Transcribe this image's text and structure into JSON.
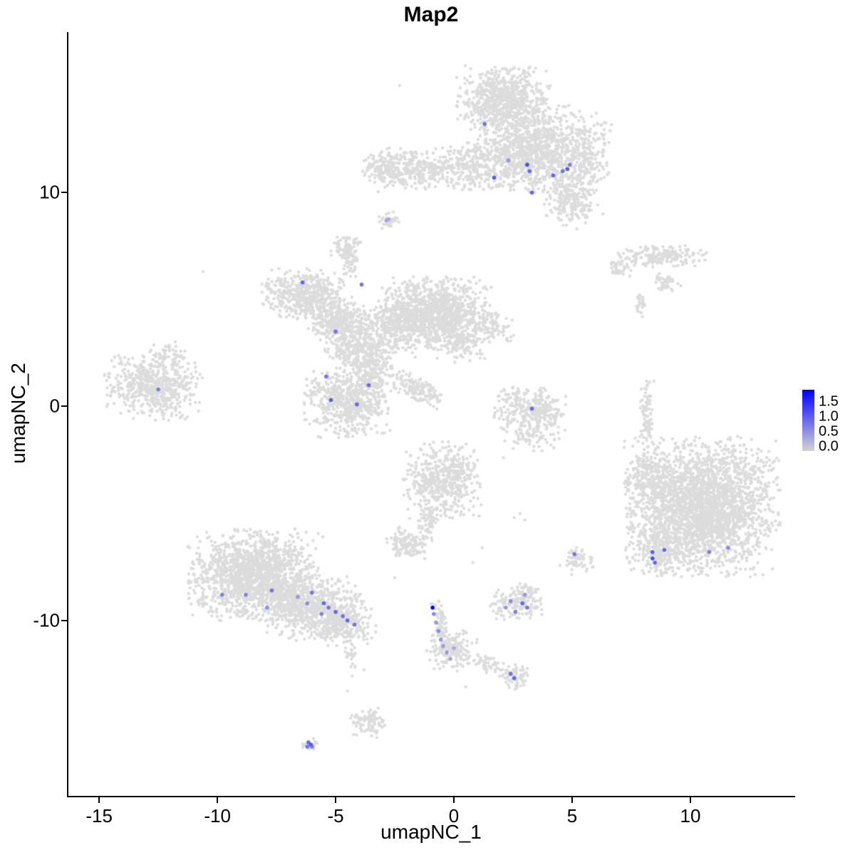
{
  "chart_data": {
    "type": "scatter",
    "title": "Map2",
    "xlabel": "umapNC_1",
    "ylabel": "umapNC_2",
    "xlim": [
      -16.3,
      14.4
    ],
    "ylim": [
      -18.2,
      17.5
    ],
    "xticks": [
      -15,
      -10,
      -5,
      0,
      5,
      10
    ],
    "yticks": [
      -10,
      0,
      10
    ],
    "grid": false,
    "point_color_base": "#DCDCDC",
    "colorbar": {
      "ticks": [
        "1.5",
        "1.0",
        "0.5",
        "0.0"
      ],
      "tick_values": [
        1.5,
        1.0,
        0.5,
        0.0
      ],
      "vmax": 1.75,
      "color_low": "#D3D3D3",
      "color_high": "#0000FF",
      "position": "right"
    },
    "clusters": [
      {
        "cx": 2.1,
        "cy": 14.3,
        "sx": 0.9,
        "sy": 0.75,
        "n": 700
      },
      {
        "cx": 3.4,
        "cy": 12.0,
        "sx": 1.05,
        "sy": 0.95,
        "n": 900
      },
      {
        "cx": 1.0,
        "cy": 11.3,
        "sx": 0.9,
        "sy": 0.55,
        "n": 320
      },
      {
        "cx": -1.6,
        "cy": 11.0,
        "sx": 0.8,
        "sy": 0.45,
        "n": 240
      },
      {
        "cx": -2.9,
        "cy": 11.2,
        "sx": 0.45,
        "sy": 0.45,
        "n": 140
      },
      {
        "cx": 4.9,
        "cy": 9.7,
        "sx": 0.55,
        "sy": 0.6,
        "n": 220
      },
      {
        "cx": 5.6,
        "cy": 11.9,
        "sx": 0.5,
        "sy": 0.85,
        "n": 210
      },
      {
        "cx": -2.8,
        "cy": 8.7,
        "sx": 0.22,
        "sy": 0.2,
        "n": 40
      },
      {
        "cx": -4.6,
        "cy": 7.4,
        "sx": 0.32,
        "sy": 0.35,
        "n": 70
      },
      {
        "cx": -4.4,
        "cy": 6.5,
        "sx": 0.14,
        "sy": 0.5,
        "n": 40
      },
      {
        "cx": -6.4,
        "cy": 5.3,
        "sx": 0.8,
        "sy": 0.55,
        "n": 450
      },
      {
        "cx": -5.0,
        "cy": 4.2,
        "sx": 0.6,
        "sy": 0.5,
        "n": 250
      },
      {
        "cx": -4.4,
        "cy": 3.1,
        "sx": 0.65,
        "sy": 0.6,
        "n": 300
      },
      {
        "cx": -0.8,
        "cy": 4.4,
        "sx": 1.1,
        "sy": 0.8,
        "n": 1100
      },
      {
        "cx": -2.6,
        "cy": 3.6,
        "sx": 0.7,
        "sy": 0.6,
        "n": 300
      },
      {
        "cx": -4.5,
        "cy": 0.3,
        "sx": 0.85,
        "sy": 0.8,
        "n": 600
      },
      {
        "cx": -3.6,
        "cy": 1.8,
        "sx": 0.5,
        "sy": 0.6,
        "n": 220
      },
      {
        "cx": -1.6,
        "cy": 0.9,
        "sx": 0.6,
        "sy": 0.3,
        "rot": -35,
        "n": 150
      },
      {
        "cx": 1.5,
        "cy": 3.8,
        "sx": 0.55,
        "sy": 0.3,
        "rot": -25,
        "n": 110
      },
      {
        "cx": 0.3,
        "cy": 2.9,
        "sx": 0.5,
        "sy": 0.4,
        "n": 120
      },
      {
        "cx": -12.7,
        "cy": 1.0,
        "sx": 0.95,
        "sy": 0.75,
        "n": 560
      },
      {
        "cx": -12.0,
        "cy": 2.4,
        "sx": 0.4,
        "sy": 0.3,
        "n": 60
      },
      {
        "cx": 8.6,
        "cy": 7.0,
        "sx": 0.95,
        "sy": 0.25,
        "n": 190
      },
      {
        "cx": 7.0,
        "cy": 6.4,
        "sx": 0.3,
        "sy": 0.18,
        "n": 35
      },
      {
        "cx": 9.0,
        "cy": 5.8,
        "sx": 0.3,
        "sy": 0.2,
        "n": 40
      },
      {
        "cx": 7.9,
        "cy": 4.7,
        "sx": 0.12,
        "sy": 0.3,
        "n": 25
      },
      {
        "cx": 3.2,
        "cy": -0.3,
        "sx": 0.7,
        "sy": 0.6,
        "n": 310
      },
      {
        "cx": 3.3,
        "cy": -1.6,
        "sx": 0.5,
        "sy": 0.3,
        "n": 40
      },
      {
        "cx": 8.15,
        "cy": -0.4,
        "sx": 0.15,
        "sy": 0.75,
        "n": 85
      },
      {
        "cx": 10.5,
        "cy": -4.7,
        "sx": 1.5,
        "sy": 1.5,
        "n": 2700
      },
      {
        "cx": 8.3,
        "cy": -3.4,
        "sx": 0.5,
        "sy": 0.55,
        "n": 160
      },
      {
        "cx": 8.6,
        "cy": -6.8,
        "sx": 0.5,
        "sy": 0.5,
        "n": 150
      },
      {
        "cx": -0.5,
        "cy": -3.5,
        "sx": 0.75,
        "sy": 0.85,
        "n": 520
      },
      {
        "cx": -1.1,
        "cy": -5.3,
        "sx": 0.2,
        "sy": 0.5,
        "n": 60
      },
      {
        "cx": -2.0,
        "cy": -6.4,
        "sx": 0.45,
        "sy": 0.35,
        "n": 130
      },
      {
        "cx": 2.7,
        "cy": -9.3,
        "sx": 0.55,
        "sy": 0.4,
        "n": 140
      },
      {
        "cx": 3.0,
        "cy": -8.6,
        "sx": 0.25,
        "sy": 0.2,
        "n": 30
      },
      {
        "cx": 5.2,
        "cy": -7.2,
        "sx": 0.35,
        "sy": 0.3,
        "n": 60
      },
      {
        "cx": -8.4,
        "cy": -7.9,
        "sx": 1.3,
        "sy": 1.0,
        "n": 1550
      },
      {
        "cx": -6.0,
        "cy": -9.4,
        "sx": 1.0,
        "sy": 0.7,
        "n": 620
      },
      {
        "cx": -4.6,
        "cy": -10.2,
        "sx": 0.6,
        "sy": 0.45,
        "n": 260
      },
      {
        "cx": -4.35,
        "cy": -11.6,
        "sx": 0.15,
        "sy": 0.4,
        "n": 25
      },
      {
        "cx": -0.1,
        "cy": -11.4,
        "sx": 0.5,
        "sy": 0.45,
        "n": 160
      },
      {
        "cx": -0.55,
        "cy": -10.2,
        "sx": 0.12,
        "sy": 0.55,
        "rot": 10,
        "n": 60
      },
      {
        "cx": 1.3,
        "cy": -12.0,
        "sx": 0.5,
        "sy": 0.18,
        "rot": -18,
        "n": 50
      },
      {
        "cx": 2.5,
        "cy": -12.6,
        "sx": 0.3,
        "sy": 0.28,
        "n": 70
      },
      {
        "cx": -6.1,
        "cy": -15.8,
        "sx": 0.18,
        "sy": 0.14,
        "n": 25
      },
      {
        "cx": -3.6,
        "cy": -14.8,
        "sx": 0.35,
        "sy": 0.35,
        "n": 85
      }
    ],
    "singles": [
      [
        -10.6,
        6.3
      ],
      [
        2.5,
        0.9
      ],
      [
        2.1,
        -2.4
      ],
      [
        4.1,
        -1.8
      ],
      [
        2.8,
        -5.0
      ],
      [
        3.0,
        -5.3
      ],
      [
        2.55,
        -5.2
      ],
      [
        -2.5,
        -8.0
      ],
      [
        0.5,
        -13.1
      ],
      [
        -3.8,
        -12.3
      ],
      [
        -4.3,
        -12.6
      ],
      [
        -4.5,
        -13.3
      ],
      [
        -2.3,
        15.0
      ],
      [
        6.3,
        9.0
      ],
      [
        5.2,
        8.3
      ],
      [
        1.2,
        -6.6
      ],
      [
        0.8,
        -7.3
      ]
    ],
    "highlights": [
      [
        1.3,
        13.2,
        0.8
      ],
      [
        2.3,
        11.5,
        0.5
      ],
      [
        1.7,
        10.7,
        1.0
      ],
      [
        3.1,
        11.3,
        1.1
      ],
      [
        3.2,
        11.0,
        0.9
      ],
      [
        4.2,
        10.8,
        0.9
      ],
      [
        4.6,
        11.0,
        0.8
      ],
      [
        4.8,
        11.1,
        1.0
      ],
      [
        4.9,
        11.3,
        0.7
      ],
      [
        3.3,
        10.0,
        0.9
      ],
      [
        -2.85,
        8.7,
        0.4
      ],
      [
        -2.75,
        8.75,
        0.3
      ],
      [
        -6.4,
        5.8,
        0.9
      ],
      [
        -3.9,
        5.7,
        0.8
      ],
      [
        -5.0,
        3.5,
        0.8
      ],
      [
        -5.4,
        1.4,
        0.8
      ],
      [
        -3.6,
        1.0,
        0.9
      ],
      [
        -5.2,
        0.3,
        1.0
      ],
      [
        -4.1,
        0.1,
        0.9
      ],
      [
        -12.5,
        0.8,
        0.7
      ],
      [
        3.3,
        -0.1,
        0.9
      ],
      [
        8.4,
        -6.8,
        1.0
      ],
      [
        8.4,
        -7.1,
        1.1
      ],
      [
        8.5,
        -7.3,
        0.9
      ],
      [
        8.9,
        -6.7,
        0.9
      ],
      [
        10.8,
        -6.8,
        0.7
      ],
      [
        11.6,
        -6.6,
        0.6
      ],
      [
        5.1,
        -6.9,
        0.8
      ],
      [
        2.4,
        -9.1,
        0.6
      ],
      [
        2.9,
        -9.2,
        0.9
      ],
      [
        3.1,
        -9.4,
        0.8
      ],
      [
        2.6,
        -9.6,
        0.7
      ],
      [
        3.0,
        -8.8,
        0.5
      ],
      [
        2.2,
        -9.4,
        0.5
      ],
      [
        -9.8,
        -8.8,
        0.7
      ],
      [
        -8.8,
        -8.8,
        0.7
      ],
      [
        -7.7,
        -8.6,
        0.8
      ],
      [
        -6.6,
        -8.9,
        0.5
      ],
      [
        -6.2,
        -9.2,
        0.6
      ],
      [
        -6.0,
        -8.7,
        0.8
      ],
      [
        -5.6,
        -9.7,
        0.7
      ],
      [
        -5.5,
        -9.2,
        0.9
      ],
      [
        -5.3,
        -9.4,
        0.8
      ],
      [
        -5.0,
        -9.6,
        0.9
      ],
      [
        -4.7,
        -9.8,
        0.8
      ],
      [
        -4.5,
        -10.0,
        0.9
      ],
      [
        -4.2,
        -10.2,
        0.8
      ],
      [
        -7.9,
        -9.4,
        0.6
      ],
      [
        -0.9,
        -9.4,
        1.75
      ],
      [
        -0.85,
        -9.7,
        0.6
      ],
      [
        -0.75,
        -10.1,
        0.5
      ],
      [
        -0.65,
        -10.5,
        0.6
      ],
      [
        -0.55,
        -10.9,
        0.5
      ],
      [
        -0.45,
        -11.2,
        0.45
      ],
      [
        -0.3,
        -11.5,
        0.5
      ],
      [
        -0.15,
        -11.8,
        0.4
      ],
      [
        0.0,
        -11.3,
        0.35
      ],
      [
        2.4,
        -12.5,
        0.8
      ],
      [
        2.55,
        -12.7,
        0.9
      ],
      [
        -6.15,
        -15.7,
        0.9
      ],
      [
        -6.05,
        -15.8,
        1.0
      ],
      [
        -6.2,
        -15.9,
        0.8
      ],
      [
        -6.0,
        -15.9,
        0.7
      ]
    ]
  }
}
